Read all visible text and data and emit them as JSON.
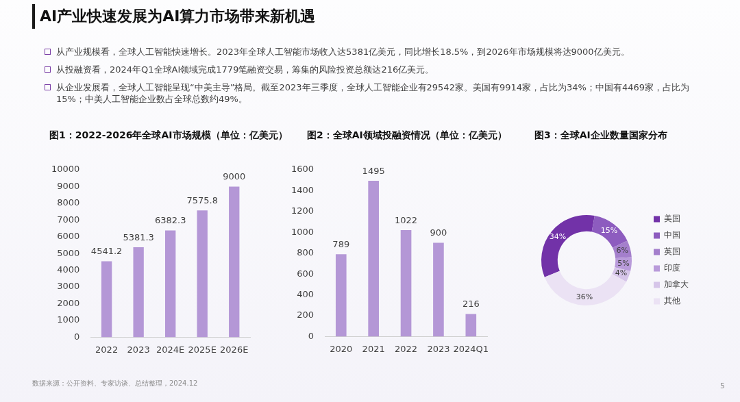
{
  "chart_data": [
    {
      "type": "other",
      "title": "AI产业快速发展为AI算力市场带来新机遇",
      "annotations": [
        "从产业规模看，全球人工智能快速增长。2023年全球人工智能市场收入达5381亿美元，同比增长18.5%，到2026年市场规模将达9000亿美元。",
        "从投融资看，2024年Q1全球AI领域完成1779笔融资交易，筹集的风险投资总额达216亿美元。",
        "从企业发展看，全球人工智能呈现“中美主导”格局。截至2023年三季度，全球人工智能企业有29542家。美国有9914家，占比为34%；中国有4469家，占比为15%；中美人工智能企业数占全球总数约49%。"
      ]
    },
    {
      "type": "bar",
      "title": "图1：2022-2026年全球AI市场规模（单位：亿美元）",
      "categories": [
        "2022",
        "2023",
        "2024E",
        "2025E",
        "2026E"
      ],
      "values": [
        4541.2,
        5381.3,
        6382.3,
        7575.8,
        9000
      ],
      "color": "#b497d6",
      "ylim": [
        0,
        10000
      ],
      "yticks": [
        0,
        1000,
        2000,
        3000,
        4000,
        5000,
        6000,
        7000,
        8000,
        9000,
        10000
      ],
      "data_labels": true,
      "annotations": [
        "数据来源：公开资料、专家访谈、总结整理，2024.12"
      ]
    },
    {
      "type": "bar",
      "title": "图2：全球AI领域投融资情况（单位：亿美元）",
      "categories": [
        "2020",
        "2021",
        "2022",
        "2023",
        "2024Q1"
      ],
      "values": [
        789,
        1495,
        1022,
        900,
        216
      ],
      "color": "#b497d6",
      "ylim": [
        0,
        1600
      ],
      "yticks": [
        0,
        200,
        400,
        600,
        800,
        1000,
        1200,
        1400,
        1600
      ],
      "data_labels": true
    },
    {
      "type": "donut",
      "title": "图3：全球AI企业数量国家分布",
      "categories": [
        "美国",
        "中国",
        "英国",
        "印度",
        "加拿大",
        "其他"
      ],
      "values": [
        34,
        15,
        6,
        5,
        4,
        36
      ],
      "colors": [
        "#7232a8",
        "#8d5cbf",
        "#a47fcc",
        "#b99bda",
        "#d6c5e9",
        "#ebe2f4"
      ],
      "value_labels": [
        "34%",
        "15%",
        "6%",
        "5%",
        "4%",
        "36%"
      ],
      "legend": "right",
      "annotations": [
        "5"
      ]
    }
  ]
}
